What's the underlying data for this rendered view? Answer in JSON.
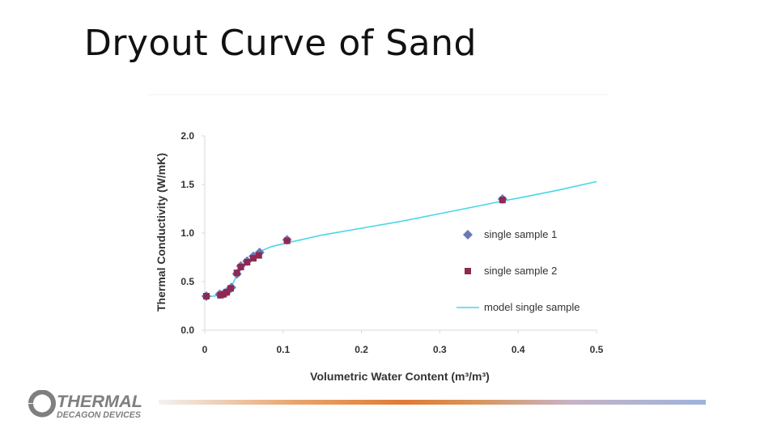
{
  "slide": {
    "title": "Dryout Curve of Sand"
  },
  "logo": {
    "brand": "THERMAL",
    "company": "DECAGON DEVICES"
  },
  "colors": {
    "sample1": "#6a78b8",
    "sample2": "#8e2a52",
    "model": "#46d8e4",
    "axis": "#d9d9d9",
    "logo_grey": "#7f7f7f"
  },
  "chart_data": {
    "type": "scatter",
    "title": "",
    "xlabel": "Volumetric Water Content (m³/m³)",
    "ylabel": "Thermal Conductivity (W/mK)",
    "xlim": [
      0,
      0.5
    ],
    "ylim": [
      0,
      2.0
    ],
    "x_ticks": [
      "0",
      "0.1",
      "0.2",
      "0.3",
      "0.4",
      "0.5"
    ],
    "y_ticks": [
      "0.0",
      "0.5",
      "1.0",
      "1.5",
      "2.0"
    ],
    "grid": false,
    "legend_position": "right",
    "series": [
      {
        "name": "single sample 1",
        "marker": "diamond",
        "points": [
          [
            0.002,
            0.35
          ],
          [
            0.019,
            0.37
          ],
          [
            0.025,
            0.38
          ],
          [
            0.029,
            0.4
          ],
          [
            0.034,
            0.44
          ],
          [
            0.041,
            0.58
          ],
          [
            0.046,
            0.66
          ],
          [
            0.054,
            0.71
          ],
          [
            0.062,
            0.76
          ],
          [
            0.07,
            0.8
          ],
          [
            0.105,
            0.93
          ],
          [
            0.38,
            1.35
          ]
        ]
      },
      {
        "name": "single sample 2",
        "marker": "square",
        "points": [
          [
            0.002,
            0.35
          ],
          [
            0.02,
            0.36
          ],
          [
            0.024,
            0.37
          ],
          [
            0.028,
            0.39
          ],
          [
            0.033,
            0.43
          ],
          [
            0.041,
            0.59
          ],
          [
            0.046,
            0.65
          ],
          [
            0.054,
            0.7
          ],
          [
            0.062,
            0.74
          ],
          [
            0.069,
            0.77
          ],
          [
            0.105,
            0.92
          ],
          [
            0.38,
            1.34
          ]
        ]
      },
      {
        "name": "model single sample",
        "marker": "line",
        "points": [
          [
            0.0,
            0.34
          ],
          [
            0.01,
            0.35
          ],
          [
            0.02,
            0.36
          ],
          [
            0.028,
            0.39
          ],
          [
            0.034,
            0.45
          ],
          [
            0.04,
            0.55
          ],
          [
            0.046,
            0.63
          ],
          [
            0.053,
            0.7
          ],
          [
            0.06,
            0.75
          ],
          [
            0.07,
            0.81
          ],
          [
            0.085,
            0.86
          ],
          [
            0.1,
            0.89
          ],
          [
            0.15,
            0.98
          ],
          [
            0.2,
            1.05
          ],
          [
            0.25,
            1.12
          ],
          [
            0.3,
            1.2
          ],
          [
            0.35,
            1.28
          ],
          [
            0.38,
            1.33
          ],
          [
            0.4,
            1.36
          ],
          [
            0.45,
            1.44
          ],
          [
            0.5,
            1.53
          ]
        ]
      }
    ]
  }
}
